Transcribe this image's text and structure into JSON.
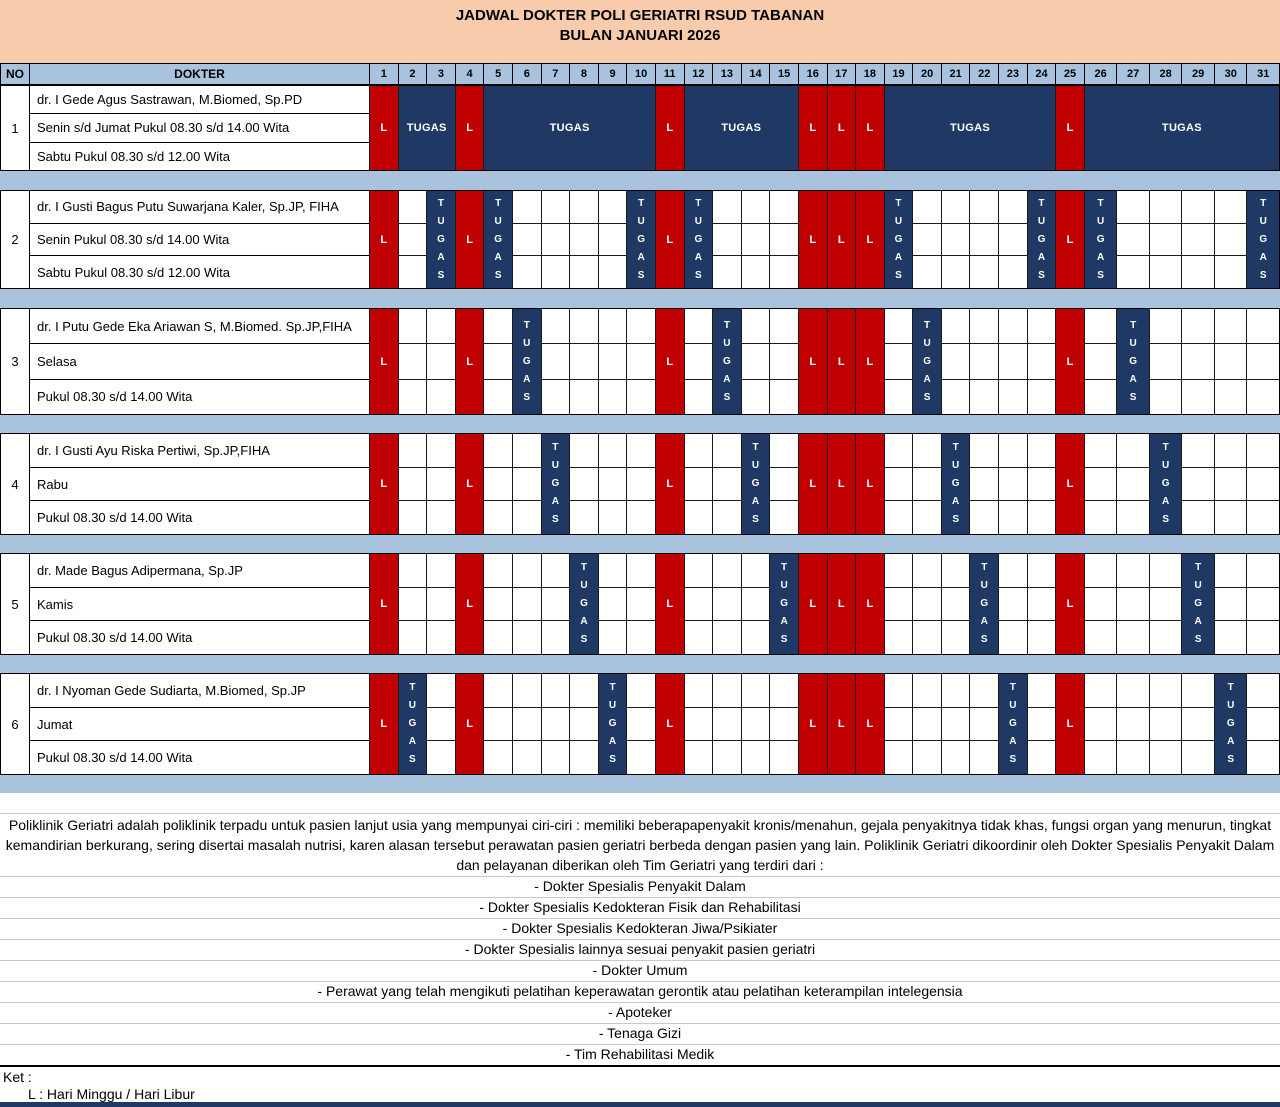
{
  "title": {
    "line1": "JADWAL DOKTER POLI GERIATRI RSUD TABANAN",
    "line2": "BULAN JANUARI 2026"
  },
  "table": {
    "headers": {
      "no": "NO",
      "dokter": "DOKTER"
    },
    "days": [
      1,
      2,
      3,
      4,
      5,
      6,
      7,
      8,
      9,
      10,
      11,
      12,
      13,
      14,
      15,
      16,
      17,
      18,
      19,
      20,
      21,
      22,
      23,
      24,
      25,
      26,
      27,
      28,
      29,
      30,
      31
    ],
    "cell_labels": {
      "holiday": "L",
      "duty": "TUGAS"
    },
    "doctors": [
      {
        "no": "1",
        "lines": [
          "dr. I Gede Agus Sastrawan, M.Biomed, Sp.PD",
          "Senin s/d Jumat Pukul 08.30 s/d 14.00 Wita",
          "Sabtu Pukul 08.30 s/d 12.00 Wita"
        ],
        "holidays": [
          1,
          4,
          11,
          16,
          17,
          18,
          25
        ],
        "duty": {
          "style": "merged",
          "spans": [
            [
              2,
              3
            ],
            [
              5,
              10
            ],
            [
              12,
              15
            ],
            [
              19,
              24
            ],
            [
              26,
              31
            ]
          ]
        }
      },
      {
        "no": "2",
        "lines": [
          "dr. I Gusti Bagus Putu Suwarjana Kaler, Sp.JP, FIHA",
          "Senin Pukul 08.30 s/d 14.00 Wita",
          "Sabtu Pukul 08.30 s/d 12.00 Wita"
        ],
        "holidays": [
          1,
          4,
          11,
          16,
          17,
          18,
          25
        ],
        "duty": {
          "style": "vertical",
          "days": [
            3,
            5,
            10,
            12,
            19,
            24,
            26,
            31
          ]
        }
      },
      {
        "no": "3",
        "lines": [
          "dr. I Putu Gede Eka Ariawan S, M.Biomed. Sp.JP,FIHA",
          "Selasa",
          "Pukul 08.30 s/d 14.00 Wita"
        ],
        "holidays": [
          1,
          4,
          11,
          16,
          17,
          18,
          25
        ],
        "duty": {
          "style": "vertical",
          "days": [
            6,
            13,
            20,
            27
          ]
        }
      },
      {
        "no": "4",
        "lines": [
          "dr. I Gusti Ayu Riska Pertiwi, Sp.JP,FIHA",
          "Rabu",
          "Pukul 08.30 s/d 14.00 Wita"
        ],
        "holidays": [
          1,
          4,
          11,
          16,
          17,
          18,
          25
        ],
        "duty": {
          "style": "vertical",
          "days": [
            7,
            14,
            21,
            28
          ]
        }
      },
      {
        "no": "5",
        "lines": [
          "dr. Made Bagus Adipermana, Sp.JP",
          "Kamis",
          "Pukul 08.30 s/d 14.00 Wita"
        ],
        "holidays": [
          1,
          4,
          11,
          16,
          17,
          18,
          25
        ],
        "duty": {
          "style": "vertical",
          "days": [
            8,
            15,
            22,
            29
          ]
        }
      },
      {
        "no": "6",
        "lines": [
          "dr. I Nyoman Gede Sudiarta, M.Biomed, Sp.JP",
          "Jumat",
          "Pukul 08.30 s/d 14.00 Wita"
        ],
        "holidays": [
          1,
          4,
          11,
          16,
          17,
          18,
          25
        ],
        "duty": {
          "style": "vertical",
          "days": [
            2,
            9,
            23,
            30
          ]
        }
      }
    ]
  },
  "footer": {
    "paragraph": "Poliklinik Geriatri adalah poliklinik terpadu untuk pasien lanjut usia yang mempunyai ciri-ciri : memiliki beberapapenyakit kronis/menahun, gejala penyakitnya tidak khas, fungsi organ yang menurun, tingkat kemandirian berkurang, sering disertai masalah nutrisi, karen alasan tersebut perawatan pasien geriatri berbeda dengan pasien yang lain. Poliklinik Geriatri dikoordinir oleh Dokter Spesialis Penyakit Dalam dan pelayanan diberikan oleh Tim Geriatri yang terdiri dari :",
    "team_items": [
      "- Dokter Spesialis Penyakit Dalam",
      "- Dokter Spesialis Kedokteran Fisik dan Rehabilitasi",
      "- Dokter Spesialis Kedokteran Jiwa/Psikiater",
      "- Dokter Spesialis lainnya sesuai penyakit pasien geriatri",
      "- Dokter Umum",
      "- Perawat yang telah mengikuti pelatihan keperawatan gerontik atau pelatihan keterampilan intelegensia",
      "- Apoteker",
      "- Tenaga Gizi",
      "- Tim Rehabilitasi Medik"
    ],
    "ket_label": "Ket :",
    "ket_item": "L : Hari Minggu / Hari Libur"
  },
  "colors": {
    "title_bg": "#F8CBAD",
    "band_bg": "#A9C3DE",
    "holiday": "#C00000",
    "duty": "#1F3864"
  }
}
